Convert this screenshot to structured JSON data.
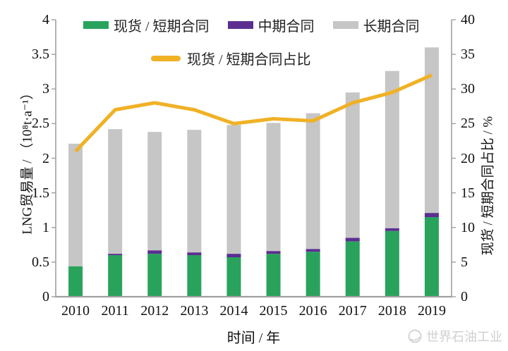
{
  "chart_data": {
    "type": "bar",
    "subtype": "stacked-bar-with-line",
    "categories": [
      "2010",
      "2011",
      "2012",
      "2013",
      "2014",
      "2015",
      "2016",
      "2017",
      "2018",
      "2019"
    ],
    "series": [
      {
        "name": "现货 / 短期合同",
        "type": "bar",
        "axis": "left",
        "color": "#29a35c",
        "values": [
          0.44,
          0.6,
          0.62,
          0.6,
          0.57,
          0.62,
          0.65,
          0.8,
          0.95,
          1.15
        ]
      },
      {
        "name": "中期合同",
        "type": "bar",
        "axis": "left",
        "color": "#5c2e91",
        "values": [
          0.0,
          0.02,
          0.05,
          0.04,
          0.05,
          0.04,
          0.04,
          0.05,
          0.04,
          0.06
        ]
      },
      {
        "name": "长期合同",
        "type": "bar",
        "axis": "left",
        "color": "#c6c6c6",
        "values": [
          1.77,
          1.8,
          1.71,
          1.77,
          1.86,
          1.85,
          1.96,
          2.1,
          2.27,
          2.39
        ]
      },
      {
        "name": "现货 / 短期合同占比",
        "type": "line",
        "axis": "right",
        "color": "#f0b125",
        "values": [
          21.0,
          27.0,
          28.0,
          27.0,
          25.0,
          25.7,
          25.4,
          28.0,
          29.5,
          32.0
        ]
      }
    ],
    "stacked": true,
    "grid": false,
    "legend_position": "top",
    "left_axis": {
      "title": "LNG贸易量 / （10⁸t·a⁻¹）",
      "min": 0,
      "max": 4,
      "ticks": [
        "0",
        "0.5",
        "1",
        "1.5",
        "2",
        "2.5",
        "3",
        "3.5",
        "4"
      ]
    },
    "right_axis": {
      "title": "现货 / 短期合同占比 / %",
      "min": 0,
      "max": 40,
      "ticks": [
        "0",
        "5",
        "10",
        "15",
        "20",
        "25",
        "30",
        "35",
        "40"
      ]
    },
    "x_axis": {
      "title": "时间 / 年"
    }
  },
  "watermark": {
    "text": "世界石油工业",
    "icon": "globe-icon"
  }
}
